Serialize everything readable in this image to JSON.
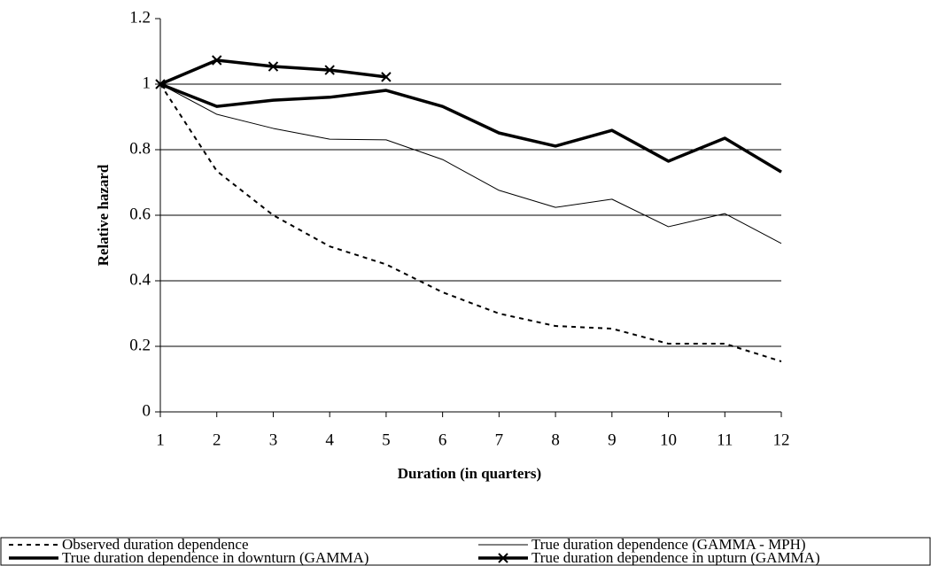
{
  "chart_data": {
    "type": "line",
    "x_label": "Duration (in quarters)",
    "y_label": "Relative hazard",
    "x": [
      1,
      2,
      3,
      4,
      5,
      6,
      7,
      8,
      9,
      10,
      11,
      12
    ],
    "xlim": [
      1,
      12
    ],
    "xticks": [
      1,
      2,
      3,
      4,
      5,
      6,
      7,
      8,
      9,
      10,
      11,
      12
    ],
    "ylim": [
      0,
      1.2
    ],
    "yticks": [
      0,
      0.2,
      0.4,
      0.6,
      0.8,
      1,
      1.2
    ],
    "grid": true,
    "legend_position": "bottom",
    "series": [
      {
        "name": "Observed duration dependence",
        "color": "#000000",
        "line_style": "dashed",
        "line_width": 2,
        "marker": "none",
        "values": [
          1,
          0.735,
          0.6,
          0.505,
          0.45,
          0.365,
          0.3,
          0.262,
          0.254,
          0.208,
          0.208,
          0.154
        ]
      },
      {
        "name": "True duration dependence (GAMMA - MPH)",
        "color": "#000000",
        "line_style": "solid",
        "line_width": 1,
        "marker": "none",
        "values": [
          1,
          0.908,
          0.865,
          0.832,
          0.83,
          0.77,
          0.676,
          0.624,
          0.649,
          0.565,
          0.605,
          0.514
        ]
      },
      {
        "name": "True duration dependence in downturn (GAMMA)",
        "color": "#000000",
        "line_style": "solid",
        "line_width": 3.5,
        "marker": "none",
        "values": [
          1,
          0.932,
          0.951,
          0.96,
          0.981,
          0.932,
          0.851,
          0.811,
          0.859,
          0.765,
          0.835,
          0.732
        ]
      },
      {
        "name": "True duration dependence in upturn (GAMMA)",
        "color": "#000000",
        "line_style": "solid",
        "line_width": 3.5,
        "marker": "x",
        "values": [
          1,
          1.073,
          1.054,
          1.043,
          1.022,
          null,
          null,
          null,
          null,
          null,
          null,
          null
        ]
      }
    ]
  }
}
